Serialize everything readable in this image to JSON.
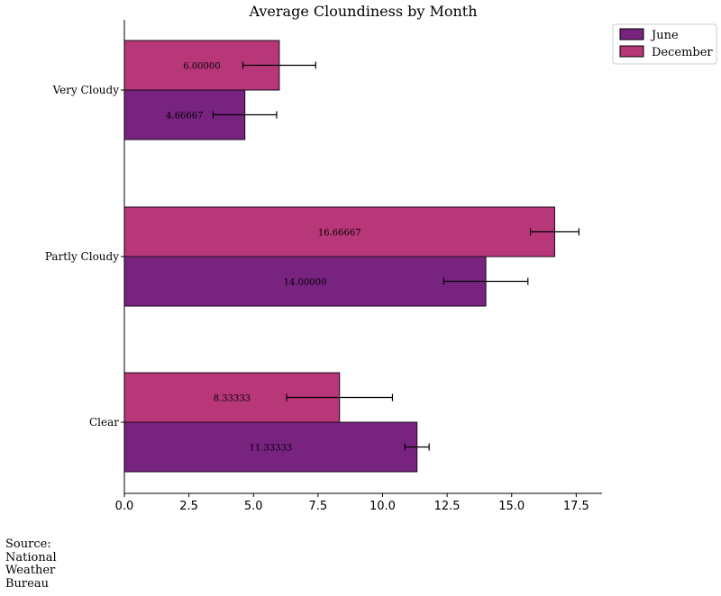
{
  "chart_data": {
    "type": "bar",
    "orientation": "horizontal",
    "title": "Average Cloundiness by Month",
    "categories": [
      "Clear",
      "Partly Cloudy",
      "Very Cloudy"
    ],
    "series": [
      {
        "name": "June",
        "color": "#792381",
        "values": [
          11.33333,
          14.0,
          4.66667
        ],
        "value_labels": [
          "11.33333",
          "14.00000",
          "4.66667"
        ],
        "error": [
          0.47,
          1.63,
          1.23
        ]
      },
      {
        "name": "December",
        "color": "#b73779",
        "values": [
          8.33333,
          16.66667,
          6.0
        ],
        "value_labels": [
          "8.33333",
          "16.66667",
          "6.00000"
        ],
        "error": [
          2.05,
          0.94,
          1.41
        ]
      }
    ],
    "xlim": [
      0,
      18.5
    ],
    "xticks": [
      0,
      2.5,
      5,
      7.5,
      10,
      12.5,
      15,
      17.5
    ],
    "xtick_labels": [
      "0.0",
      "2.5",
      "5.0",
      "7.5",
      "10.0",
      "12.5",
      "15.0",
      "17.5"
    ],
    "grid": false,
    "legend_position": "top-right"
  },
  "source": {
    "lines": [
      "Source:",
      "National",
      "Weather",
      "Bureau"
    ]
  }
}
